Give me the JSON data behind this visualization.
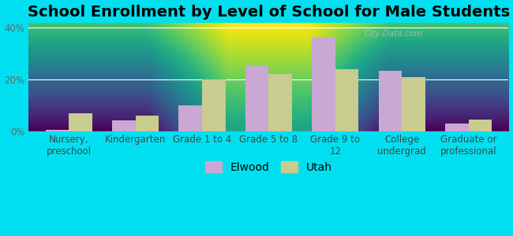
{
  "title": "School Enrollment by Level of School for Male Students",
  "categories": [
    "Nursery,\npreschool",
    "Kindergarten",
    "Grade 1 to 4",
    "Grade 5 to 8",
    "Grade 9 to\n12",
    "College\nundergrad",
    "Graduate or\nprofessional"
  ],
  "elwood_values": [
    0.5,
    4.0,
    10.0,
    25.5,
    36.5,
    23.5,
    3.0
  ],
  "utah_values": [
    7.0,
    6.0,
    20.0,
    22.0,
    24.0,
    21.0,
    4.5
  ],
  "elwood_color": "#c9a8d4",
  "utah_color": "#c8cc8e",
  "background_outer": "#00e0f0",
  "ylim": [
    0,
    42
  ],
  "yticks": [
    0,
    20,
    40
  ],
  "ytick_labels": [
    "0%",
    "20%",
    "40%"
  ],
  "legend_labels": [
    "Elwood",
    "Utah"
  ],
  "title_fontsize": 14,
  "tick_fontsize": 8.5,
  "legend_fontsize": 10
}
